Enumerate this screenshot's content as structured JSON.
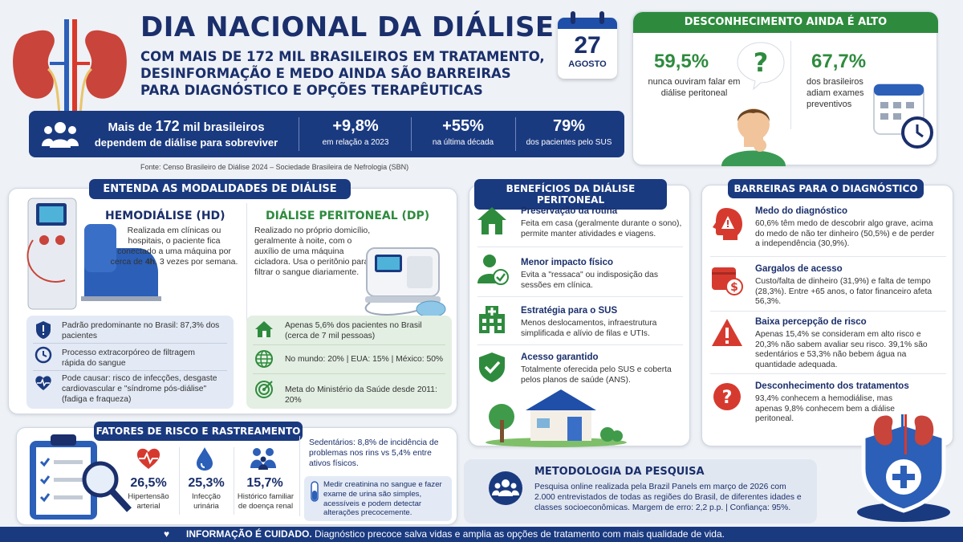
{
  "header": {
    "title": "DIA NACIONAL DA DIÁLISE",
    "subtitle_lines": [
      "COM MAIS DE 172 MIL BRASILEIROS EM TRATAMENTO,",
      "DESINFORMAÇÃO E MEDO AINDA SÃO BARREIRAS",
      "PARA DIAGNÓSTICO E OPÇÕES TERAPÊUTICAS"
    ],
    "calendar_day": "27",
    "calendar_month": "AGOSTO"
  },
  "stats_bar": {
    "main_prefix": "Mais de ",
    "main_number": "172",
    "main_suffix": " mil brasileiros",
    "main_line2": "dependem de diálise para sobreviver",
    "items": [
      {
        "value": "+9,8%",
        "label": "em relação a 2023"
      },
      {
        "value": "+55%",
        "label": "na última década"
      },
      {
        "value": "79%",
        "label": "dos pacientes pelo SUS"
      }
    ],
    "source": "Fonte: Censo Brasileiro de Diálise 2024 – Sociedade Brasileira de Nefrologia (SBN)"
  },
  "unknown_box": {
    "title": "DESCONHECIMENTO AINDA É ALTO",
    "left_value": "59,5%",
    "left_label": "nunca ouviram falar em diálise peritoneal",
    "right_value": "67,7%",
    "right_label": "dos brasileiros adiam exames preventivos"
  },
  "modalities": {
    "title": "ENTENDA AS MODALIDADES DE DIÁLISE",
    "hd": {
      "name": "HEMODIÁLISE (HD)",
      "desc_a": "Realizada em clínicas ou hospitais, o paciente fica conectado a uma máquina por cerca de ",
      "desc_b": "4h",
      "desc_c": ", 3 vezes por semana.",
      "facts": [
        "Padrão predominante no Brasil: 87,3% dos pacientes",
        "Processo extracorpóreo de filtragem rápida do sangue",
        "Pode causar: risco de infecções, desgaste cardiovascular e \"síndrome pós-diálise\" (fadiga e fraqueza)"
      ]
    },
    "dp": {
      "name": "DIÁLISE PERITONEAL (DP)",
      "desc": "Realizado no próprio domicílio, geralmente à noite, com o auxílio de uma máquina cicladora. Usa o peritônio para filtrar o sangue diariamente.",
      "facts": [
        "Apenas 5,6% dos pacientes no Brasil (cerca de 7 mil pessoas)",
        "No mundo: 20% | EUA: 15% | México: 50%",
        "Meta do Ministério da Saúde desde 2011: 20%"
      ]
    }
  },
  "benefits": {
    "title": "BENEFÍCIOS DA DIÁLISE PERITONEAL",
    "items": [
      {
        "title": "Preservação da rotina",
        "desc": "Feita em casa (geralmente durante o sono), permite manter atividades e viagens."
      },
      {
        "title": "Menor impacto físico",
        "desc": "Evita a \"ressaca\" ou indisposição das sessões em clínica."
      },
      {
        "title": "Estratégia para o SUS",
        "desc": "Menos deslocamentos, infraestrutura simplificada e alívio de filas e UTIs."
      },
      {
        "title": "Acesso garantido",
        "desc": "Totalmente oferecida pelo SUS e coberta pelos planos de saúde (ANS)."
      }
    ]
  },
  "barriers": {
    "title": "BARREIRAS PARA O DIAGNÓSTICO",
    "items": [
      {
        "title": "Medo do diagnóstico",
        "desc": "60,6% têm medo de descobrir algo grave, acima do medo de não ter dinheiro (50,5%) e de perder a independência (30,9%)."
      },
      {
        "title": "Gargalos de acesso",
        "desc": "Custo/falta de dinheiro (31,9%) e falta de tempo (28,3%). Entre +65 anos, o fator financeiro afeta 56,3%."
      },
      {
        "title": "Baixa percepção de risco",
        "desc": "Apenas 15,4% se consideram em alto risco e 20,3% não sabem avaliar seu risco. 39,1% são sedentários e 53,3% não bebem água na quantidade adequada."
      },
      {
        "title": "Desconhecimento dos tratamentos",
        "desc": "93,4% conhecem a hemodiálise, mas apenas 9,8% conhecem bem a diálise peritoneal."
      }
    ]
  },
  "risk": {
    "title": "FATORES DE RISCO E RASTREAMENTO",
    "items": [
      {
        "value": "26,5%",
        "label": "Hipertensão arterial"
      },
      {
        "value": "25,3%",
        "label": "Infecção urinária"
      },
      {
        "value": "15,7%",
        "label": "Histórico familiar de doença renal"
      }
    ],
    "sedentary": "Sedentários: 8,8% de incidência de problemas nos rins vs 5,4% entre ativos físicos.",
    "tip": "Medir creatinina no sangue e fazer exame de urina são simples, acessíveis e podem detectar alterações precocemente."
  },
  "methodology": {
    "title": "METODOLOGIA DA PESQUISA",
    "text": "Pesquisa online realizada pela Brazil Panels em março de 2026 com 2.000 entrevistados de todas as regiões do Brasil, de diferentes idades e classes socioeconômicas. Margem de erro: 2,2 p.p. | Confiança: 95%."
  },
  "footer": {
    "bold": "INFORMAÇÃO É CUIDADO.",
    "text": " Diagnóstico precoce salva vidas e amplia as opções de tratamento com mais qualidade de vida."
  },
  "colors": {
    "navy": "#1a2f6b",
    "bar": "#1a3a80",
    "green": "#2e8b3e",
    "red": "#d63a2f"
  }
}
